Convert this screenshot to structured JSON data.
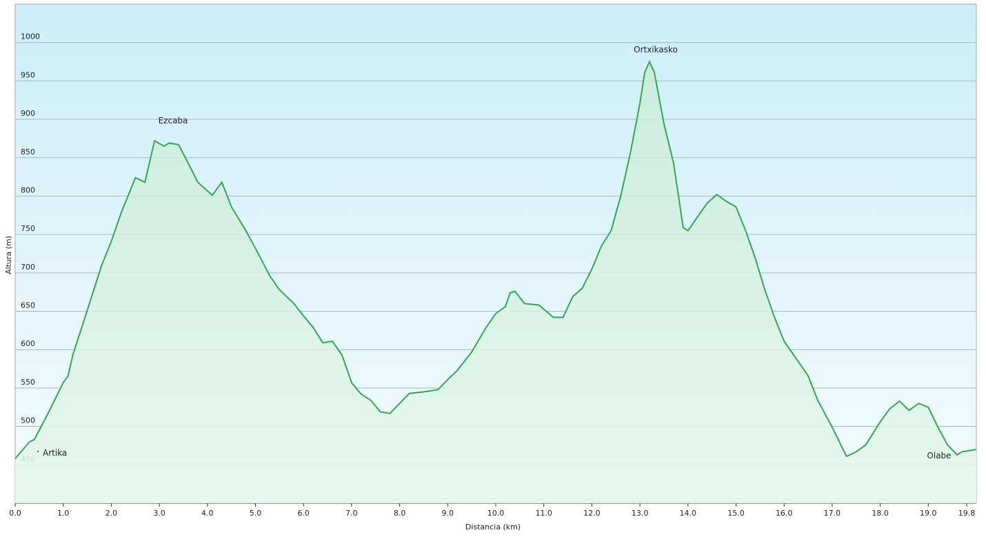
{
  "chart_data": {
    "type": "area",
    "x_label": "Distancia  (km)",
    "y_label": "Altura (m)",
    "annotations": [
      "Ezcaba",
      "Ortxikasko",
      "Artika",
      "Olabe"
    ],
    "series": [
      {
        "name": "Altura",
        "color": "#2ea84e",
        "x": [
          0,
          0.3,
          0.4,
          0.7,
          1.0,
          1.1,
          1.2,
          1.5,
          1.8,
          2.0,
          2.2,
          2.5,
          2.7,
          2.9,
          3.1,
          3.2,
          3.4,
          3.6,
          3.8,
          4.1,
          4.3,
          4.5,
          4.8,
          5.0,
          5.3,
          5.5,
          5.8,
          6.0,
          6.2,
          6.4,
          6.6,
          6.8,
          7.0,
          7.2,
          7.4,
          7.6,
          7.8,
          8.0,
          8.2,
          8.5,
          8.8,
          9.0,
          9.2,
          9.5,
          9.8,
          10.0,
          10.2,
          10.3,
          10.4,
          10.6,
          10.9,
          11.2,
          11.4,
          11.6,
          11.8,
          12.0,
          12.2,
          12.4,
          12.6,
          12.8,
          13.0,
          13.1,
          13.2,
          13.3,
          13.5,
          13.7,
          13.9,
          14.0,
          14.2,
          14.4,
          14.6,
          14.8,
          15.0,
          15.2,
          15.4,
          15.6,
          15.8,
          16.0,
          16.2,
          16.5,
          16.7,
          17.0,
          17.3,
          17.5,
          17.7,
          18.0,
          18.2,
          18.4,
          18.6,
          18.8,
          19.0,
          19.2,
          19.4,
          19.6,
          19.7,
          20.0
        ],
        "values": [
          458,
          480,
          483,
          519,
          557,
          566,
          593,
          651,
          710,
          741,
          777,
          824,
          818,
          872,
          865,
          869,
          867,
          843,
          818,
          801,
          818,
          786,
          755,
          732,
          696,
          678,
          660,
          644,
          629,
          609,
          611,
          593,
          557,
          542,
          534,
          519,
          517,
          530,
          543,
          545,
          548,
          561,
          573,
          597,
          629,
          647,
          656,
          674,
          676,
          660,
          658,
          642,
          642,
          669,
          680,
          705,
          735,
          755,
          800,
          856,
          921,
          961,
          975,
          961,
          894,
          843,
          759,
          755,
          773,
          791,
          802,
          793,
          786,
          755,
          719,
          678,
          642,
          611,
          593,
          566,
          534,
          499,
          461,
          467,
          476,
          506,
          523,
          533,
          521,
          530,
          525,
          499,
          476,
          463,
          467,
          470
        ]
      }
    ],
    "xlim": [
      0,
      20
    ],
    "ylim": [
      400,
      1050
    ],
    "xticks": [
      {
        "value": 0,
        "label": "0.0"
      },
      {
        "value": 1,
        "label": "1.0"
      },
      {
        "value": 2,
        "label": "2.0"
      },
      {
        "value": 3,
        "label": "3.0"
      },
      {
        "value": 4,
        "label": "4.0"
      },
      {
        "value": 5,
        "label": "5.0"
      },
      {
        "value": 6,
        "label": "6.0"
      },
      {
        "value": 7,
        "label": "7.0"
      },
      {
        "value": 8,
        "label": "8.0"
      },
      {
        "value": 9,
        "label": "9.0"
      },
      {
        "value": 10,
        "label": "10.0"
      },
      {
        "value": 11,
        "label": "11.0"
      },
      {
        "value": 12,
        "label": "12.0"
      },
      {
        "value": 13,
        "label": "13.0"
      },
      {
        "value": 14,
        "label": "14.0"
      },
      {
        "value": 15,
        "label": "15.0"
      },
      {
        "value": 16,
        "label": "16.0"
      },
      {
        "value": 17,
        "label": "17.0"
      },
      {
        "value": 18,
        "label": "18.0"
      },
      {
        "value": 19,
        "label": "19.0"
      },
      {
        "value": 19.8,
        "label": "19.8"
      }
    ],
    "yticks": [
      450,
      500,
      550,
      600,
      650,
      700,
      750,
      800,
      850,
      900,
      950,
      1000
    ],
    "grid": true
  }
}
